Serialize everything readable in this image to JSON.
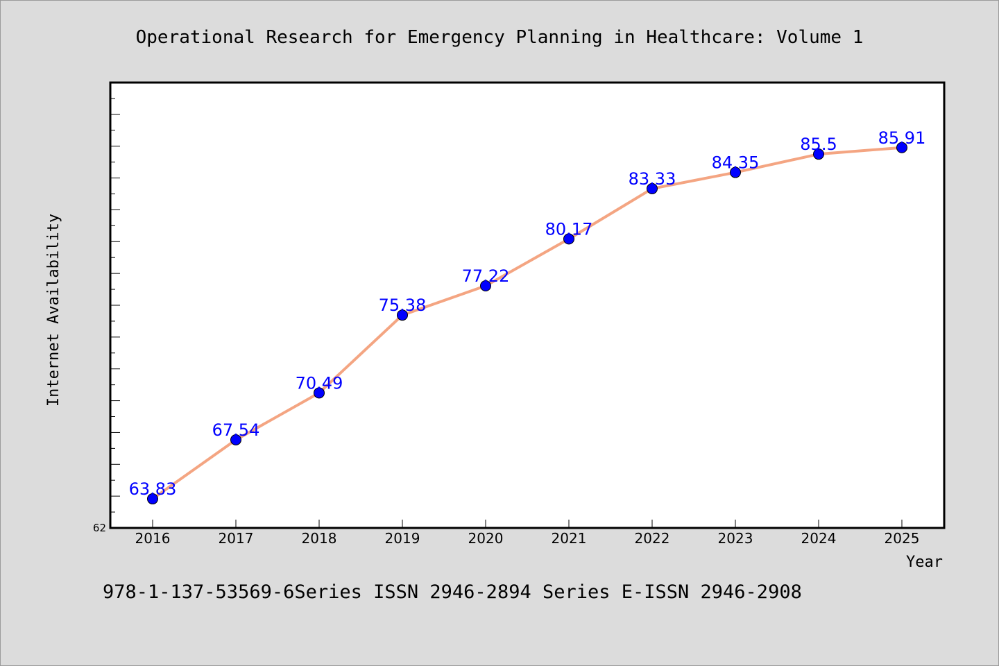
{
  "chart_data": {
    "type": "line",
    "title": "Operational Research for Emergency Planning in Healthcare: Volume 1",
    "xlabel": "Year",
    "ylabel": "Internet Availability",
    "x": [
      "2016",
      "2017",
      "2018",
      "2019",
      "2020",
      "2021",
      "2022",
      "2023",
      "2024",
      "2025"
    ],
    "series": [
      {
        "values": [
          63.83,
          67.54,
          70.49,
          75.38,
          77.22,
          80.17,
          83.33,
          84.35,
          85.5,
          85.91
        ],
        "labels": [
          "63.83",
          "67.54",
          "70.49",
          "75.38",
          "77.22",
          "80.17",
          "83.33",
          "84.35",
          "85.5",
          "85.91"
        ],
        "line_color": "#f4a582",
        "marker_color": "#0000ff"
      }
    ],
    "ylim": [
      62,
      90
    ],
    "y_tick_labels": [
      "62"
    ],
    "grid": false,
    "legend": "none"
  },
  "footer": {
    "text": "978-1-137-53569-6Series ISSN 2946-2894 Series E-ISSN 2946-2908"
  },
  "colors": {
    "background": "#dcdcdc",
    "plot_area": "#ffffff",
    "line": "#f4a582",
    "marker": "#0000ff",
    "data_label": "#0000ff"
  }
}
